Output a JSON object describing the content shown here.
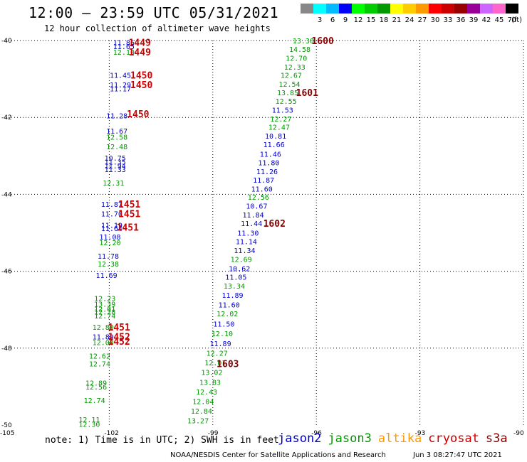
{
  "title": "12:00 – 23:59 UTC 05/31/2021",
  "subtitle": "12 hour collection of altimeter wave heights",
  "color_scale": {
    "unit": "(ft)",
    "labels": [
      "",
      "3",
      "6",
      "9",
      "12",
      "15",
      "18",
      "21",
      "24",
      "27",
      "30",
      "33",
      "36",
      "39",
      "42",
      "45",
      "70"
    ],
    "colors": [
      "#888888",
      "#00ffff",
      "#00bbff",
      "#0000ff",
      "#00ff00",
      "#00cc00",
      "#009900",
      "#ffff00",
      "#ffcc00",
      "#ff9900",
      "#ff0000",
      "#cc0000",
      "#990000",
      "#990099",
      "#cc66ff",
      "#ff66cc",
      "#000000"
    ]
  },
  "note": "note: 1) Time is in UTC; 2) SWH is in feet",
  "satellites": [
    {
      "name": "jason2",
      "color": "#0000cc"
    },
    {
      "name": "jason3",
      "color": "#009900"
    },
    {
      "name": "altika",
      "color": "#ff9900"
    },
    {
      "name": "cryosat",
      "color": "#cc0000"
    },
    {
      "name": "s3a",
      "color": "#880000"
    }
  ],
  "credit": "NOAA/NESDIS Center for Satellite Applications and Research",
  "generated": "Jun  3 08:27:47 UTC 2021",
  "map": {
    "lon_labels": [
      "-105",
      "-102",
      "-99",
      "-96",
      "-93",
      "-90"
    ],
    "lon_values": [
      -105,
      -102,
      -99,
      -96,
      -93,
      -90
    ],
    "lat_labels": [
      "-40",
      "-42",
      "-44",
      "-46",
      "-48",
      "-50"
    ],
    "lat_values": [
      -40,
      -42,
      -44,
      -46,
      -48,
      -50
    ],
    "lon_range": [
      -105,
      -90
    ],
    "lat_range": [
      -50,
      -40
    ],
    "grid": "dotted"
  },
  "observations": [
    {
      "lon": -101.6,
      "lat": -40.05,
      "text": "11.86",
      "sat": "jason2"
    },
    {
      "lon": -101.6,
      "lat": -40.15,
      "text": "11.65",
      "sat": "jason2"
    },
    {
      "lon": -101.6,
      "lat": -40.3,
      "text": "12.10",
      "sat": "jason3"
    },
    {
      "lon": -101.7,
      "lat": -40.9,
      "text": "11.45",
      "sat": "jason2"
    },
    {
      "lon": -101.7,
      "lat": -41.15,
      "text": "11.29",
      "sat": "jason2"
    },
    {
      "lon": -101.7,
      "lat": -41.25,
      "text": "11.17",
      "sat": "jason2"
    },
    {
      "lon": -101.8,
      "lat": -41.95,
      "text": "11.28",
      "sat": "jason2"
    },
    {
      "lon": -101.8,
      "lat": -42.35,
      "text": "11.67",
      "sat": "jason2"
    },
    {
      "lon": -101.8,
      "lat": -42.5,
      "text": "12.58",
      "sat": "jason3"
    },
    {
      "lon": -101.8,
      "lat": -42.75,
      "text": "12.48",
      "sat": "jason3"
    },
    {
      "lon": -101.85,
      "lat": -43.05,
      "text": "10.75",
      "sat": "jason2"
    },
    {
      "lon": -101.85,
      "lat": -43.15,
      "text": "11.35",
      "sat": "jason2"
    },
    {
      "lon": -101.85,
      "lat": -43.25,
      "text": "11.94",
      "sat": "jason2"
    },
    {
      "lon": -101.85,
      "lat": -43.35,
      "text": "11.33",
      "sat": "jason2"
    },
    {
      "lon": -101.9,
      "lat": -43.7,
      "text": "12.31",
      "sat": "jason3"
    },
    {
      "lon": -101.95,
      "lat": -44.25,
      "text": "11.87",
      "sat": "jason2"
    },
    {
      "lon": -101.95,
      "lat": -44.5,
      "text": "11.70",
      "sat": "jason2"
    },
    {
      "lon": -101.95,
      "lat": -44.8,
      "text": "11.19",
      "sat": "jason2"
    },
    {
      "lon": -101.95,
      "lat": -44.88,
      "text": "11.64",
      "sat": "jason2"
    },
    {
      "lon": -102.0,
      "lat": -45.1,
      "text": "11.08",
      "sat": "jason2"
    },
    {
      "lon": -102.0,
      "lat": -45.25,
      "text": "12.20",
      "sat": "jason3"
    },
    {
      "lon": -102.05,
      "lat": -45.6,
      "text": "11.78",
      "sat": "jason2"
    },
    {
      "lon": -102.05,
      "lat": -45.8,
      "text": "12.38",
      "sat": "jason3"
    },
    {
      "lon": -102.1,
      "lat": -46.1,
      "text": "11.69",
      "sat": "jason2"
    },
    {
      "lon": -102.15,
      "lat": -46.7,
      "text": "12.23",
      "sat": "jason3"
    },
    {
      "lon": -102.15,
      "lat": -46.85,
      "text": "13.39",
      "sat": "jason3"
    },
    {
      "lon": -102.15,
      "lat": -46.98,
      "text": "12.01",
      "sat": "jason3"
    },
    {
      "lon": -102.15,
      "lat": -47.05,
      "text": "12.28",
      "sat": "jason3"
    },
    {
      "lon": -102.15,
      "lat": -47.15,
      "text": "12.74",
      "sat": "jason3"
    },
    {
      "lon": -102.2,
      "lat": -47.45,
      "text": "12.80",
      "sat": "jason3"
    },
    {
      "lon": -102.2,
      "lat": -47.7,
      "text": "11.89",
      "sat": "jason2"
    },
    {
      "lon": -102.2,
      "lat": -47.85,
      "text": "12.00",
      "sat": "jason3"
    },
    {
      "lon": -102.3,
      "lat": -48.2,
      "text": "12.62",
      "sat": "jason3"
    },
    {
      "lon": -102.3,
      "lat": -48.4,
      "text": "12.74",
      "sat": "jason3"
    },
    {
      "lon": -102.4,
      "lat": -48.9,
      "text": "12.89",
      "sat": "jason3"
    },
    {
      "lon": -102.4,
      "lat": -49.0,
      "text": "12.56",
      "sat": "jason3"
    },
    {
      "lon": -102.45,
      "lat": -49.35,
      "text": "12.74",
      "sat": "jason3"
    },
    {
      "lon": -102.6,
      "lat": -49.85,
      "text": "12.11",
      "sat": "jason3"
    },
    {
      "lon": -102.6,
      "lat": -49.97,
      "text": "12.30",
      "sat": "jason3"
    },
    {
      "lon": -96.4,
      "lat": -40.0,
      "text": "13.30",
      "sat": "jason3"
    },
    {
      "lon": -96.5,
      "lat": -40.22,
      "text": "14.58",
      "sat": "jason3"
    },
    {
      "lon": -96.6,
      "lat": -40.45,
      "text": "12.70",
      "sat": "jason3"
    },
    {
      "lon": -96.65,
      "lat": -40.68,
      "text": "12.33",
      "sat": "jason3"
    },
    {
      "lon": -96.75,
      "lat": -40.9,
      "text": "12.67",
      "sat": "jason3"
    },
    {
      "lon": -96.8,
      "lat": -41.13,
      "text": "12.54",
      "sat": "jason3"
    },
    {
      "lon": -96.85,
      "lat": -41.35,
      "text": "13.85",
      "sat": "jason3"
    },
    {
      "lon": -96.9,
      "lat": -41.57,
      "text": "12.55",
      "sat": "jason3"
    },
    {
      "lon": -97.0,
      "lat": -41.8,
      "text": "11.53",
      "sat": "jason2"
    },
    {
      "lon": -97.05,
      "lat": -42.03,
      "text": "12.27",
      "sat": "jason3"
    },
    {
      "lon": -97.1,
      "lat": -42.25,
      "text": "12.47",
      "sat": "jason3"
    },
    {
      "lon": -97.2,
      "lat": -42.48,
      "text": "10.81",
      "sat": "jason2"
    },
    {
      "lon": -97.25,
      "lat": -42.7,
      "text": "11.66",
      "sat": "jason2"
    },
    {
      "lon": -97.35,
      "lat": -42.95,
      "text": "11.46",
      "sat": "jason2"
    },
    {
      "lon": -97.4,
      "lat": -43.17,
      "text": "11.80",
      "sat": "jason2"
    },
    {
      "lon": -97.45,
      "lat": -43.4,
      "text": "11.26",
      "sat": "jason2"
    },
    {
      "lon": -97.55,
      "lat": -43.62,
      "text": "11.87",
      "sat": "jason2"
    },
    {
      "lon": -97.6,
      "lat": -43.85,
      "text": "11.60",
      "sat": "jason2"
    },
    {
      "lon": -97.7,
      "lat": -44.07,
      "text": "12.56",
      "sat": "jason3"
    },
    {
      "lon": -97.75,
      "lat": -44.3,
      "text": "10.67",
      "sat": "jason2"
    },
    {
      "lon": -97.85,
      "lat": -44.53,
      "text": "11.84",
      "sat": "jason2"
    },
    {
      "lon": -97.9,
      "lat": -44.75,
      "text": "11.44",
      "sat": "jason2"
    },
    {
      "lon": -98.0,
      "lat": -45.0,
      "text": "11.30",
      "sat": "jason2"
    },
    {
      "lon": -98.05,
      "lat": -45.22,
      "text": "11.14",
      "sat": "jason2"
    },
    {
      "lon": -98.1,
      "lat": -45.45,
      "text": "11.34",
      "sat": "jason2"
    },
    {
      "lon": -98.2,
      "lat": -45.68,
      "text": "12.69",
      "sat": "jason3"
    },
    {
      "lon": -98.25,
      "lat": -45.92,
      "text": "10.62",
      "sat": "jason2"
    },
    {
      "lon": -98.35,
      "lat": -46.15,
      "text": "11.05",
      "sat": "jason2"
    },
    {
      "lon": -98.4,
      "lat": -46.38,
      "text": "13.34",
      "sat": "jason3"
    },
    {
      "lon": -98.45,
      "lat": -46.62,
      "text": "11.89",
      "sat": "jason2"
    },
    {
      "lon": -98.55,
      "lat": -46.87,
      "text": "11.60",
      "sat": "jason2"
    },
    {
      "lon": -98.6,
      "lat": -47.1,
      "text": "12.02",
      "sat": "jason3"
    },
    {
      "lon": -98.7,
      "lat": -47.37,
      "text": "11.50",
      "sat": "jason2"
    },
    {
      "lon": -98.75,
      "lat": -47.62,
      "text": "12.10",
      "sat": "jason3"
    },
    {
      "lon": -98.8,
      "lat": -47.87,
      "text": "11.89",
      "sat": "jason2"
    },
    {
      "lon": -98.9,
      "lat": -48.12,
      "text": "12.27",
      "sat": "jason3"
    },
    {
      "lon": -98.95,
      "lat": -48.37,
      "text": "12.01",
      "sat": "jason3"
    },
    {
      "lon": -99.05,
      "lat": -48.62,
      "text": "13.02",
      "sat": "jason3"
    },
    {
      "lon": -99.1,
      "lat": -48.88,
      "text": "13.83",
      "sat": "jason3"
    },
    {
      "lon": -99.2,
      "lat": -49.13,
      "text": "12.43",
      "sat": "jason3"
    },
    {
      "lon": -99.3,
      "lat": -49.38,
      "text": "12.04",
      "sat": "jason3"
    },
    {
      "lon": -99.35,
      "lat": -49.63,
      "text": "12.84",
      "sat": "jason3"
    },
    {
      "lon": -99.45,
      "lat": -49.88,
      "text": "13.27",
      "sat": "jason3"
    }
  ],
  "time_labels": [
    {
      "lon": -101.15,
      "lat": -40.05,
      "text": "1449",
      "sat": "cryosat"
    },
    {
      "lon": -101.15,
      "lat": -40.3,
      "text": "1449",
      "sat": "cryosat"
    },
    {
      "lon": -101.1,
      "lat": -40.9,
      "text": "1450",
      "sat": "cryosat"
    },
    {
      "lon": -101.1,
      "lat": -41.15,
      "text": "1450",
      "sat": "cryosat"
    },
    {
      "lon": -101.2,
      "lat": -41.9,
      "text": "1450",
      "sat": "cryosat"
    },
    {
      "lon": -101.45,
      "lat": -44.25,
      "text": "1451",
      "sat": "cryosat"
    },
    {
      "lon": -101.45,
      "lat": -44.5,
      "text": "1451",
      "sat": "cryosat"
    },
    {
      "lon": -101.5,
      "lat": -44.85,
      "text": "1451",
      "sat": "cryosat"
    },
    {
      "lon": -101.75,
      "lat": -47.45,
      "text": "1451",
      "sat": "cryosat"
    },
    {
      "lon": -101.75,
      "lat": -47.7,
      "text": "1452",
      "sat": "cryosat"
    },
    {
      "lon": -101.75,
      "lat": -47.82,
      "text": "1452",
      "sat": "cryosat"
    },
    {
      "lon": -95.85,
      "lat": -40.0,
      "text": "1600",
      "sat": "s3a"
    },
    {
      "lon": -96.3,
      "lat": -41.35,
      "text": "1601",
      "sat": "s3a"
    },
    {
      "lon": -97.25,
      "lat": -44.75,
      "text": "1602",
      "sat": "s3a"
    },
    {
      "lon": -98.6,
      "lat": -48.4,
      "text": "1603",
      "sat": "s3a"
    }
  ]
}
